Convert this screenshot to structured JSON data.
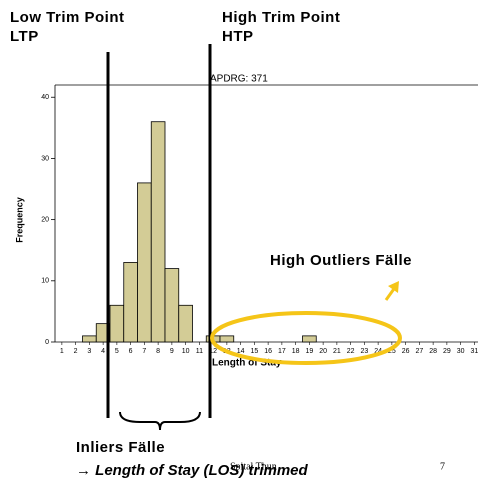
{
  "chart_data": {
    "type": "bar",
    "title": "APDRG: 371",
    "x_label": "Length of Stay",
    "y_label": "Frequency",
    "categories": [
      "1",
      "2",
      "3",
      "4",
      "5",
      "6",
      "7",
      "8",
      "9",
      "10",
      "11",
      "12",
      "13",
      "14",
      "15",
      "16",
      "17",
      "18",
      "19",
      "20",
      "21",
      "22",
      "23",
      "24",
      "25",
      "26",
      "27",
      "28",
      "29",
      "30",
      "31"
    ],
    "values": [
      0,
      0,
      1,
      3,
      6,
      13,
      26,
      36,
      12,
      6,
      0,
      1,
      1,
      0,
      0,
      0,
      0,
      0,
      1,
      0,
      0,
      0,
      0,
      0,
      0,
      0,
      0,
      0,
      0,
      0,
      0
    ],
    "color": "#d3cc96",
    "ylim": [
      0,
      42
    ],
    "yticks": [
      0,
      10,
      20,
      30,
      40
    ],
    "annotations": {
      "low_trim": "Low Trim Point",
      "ltp": "LTP",
      "high_trim": "High Trim Point",
      "htp": "HTP",
      "outliers": "High Outliers Fälle",
      "inliers": "Inliers Fälle",
      "trimmed": "→ Length of Stay (LOS) trimmed"
    }
  },
  "footer": {
    "text": "Spital Thun",
    "page": "7"
  }
}
